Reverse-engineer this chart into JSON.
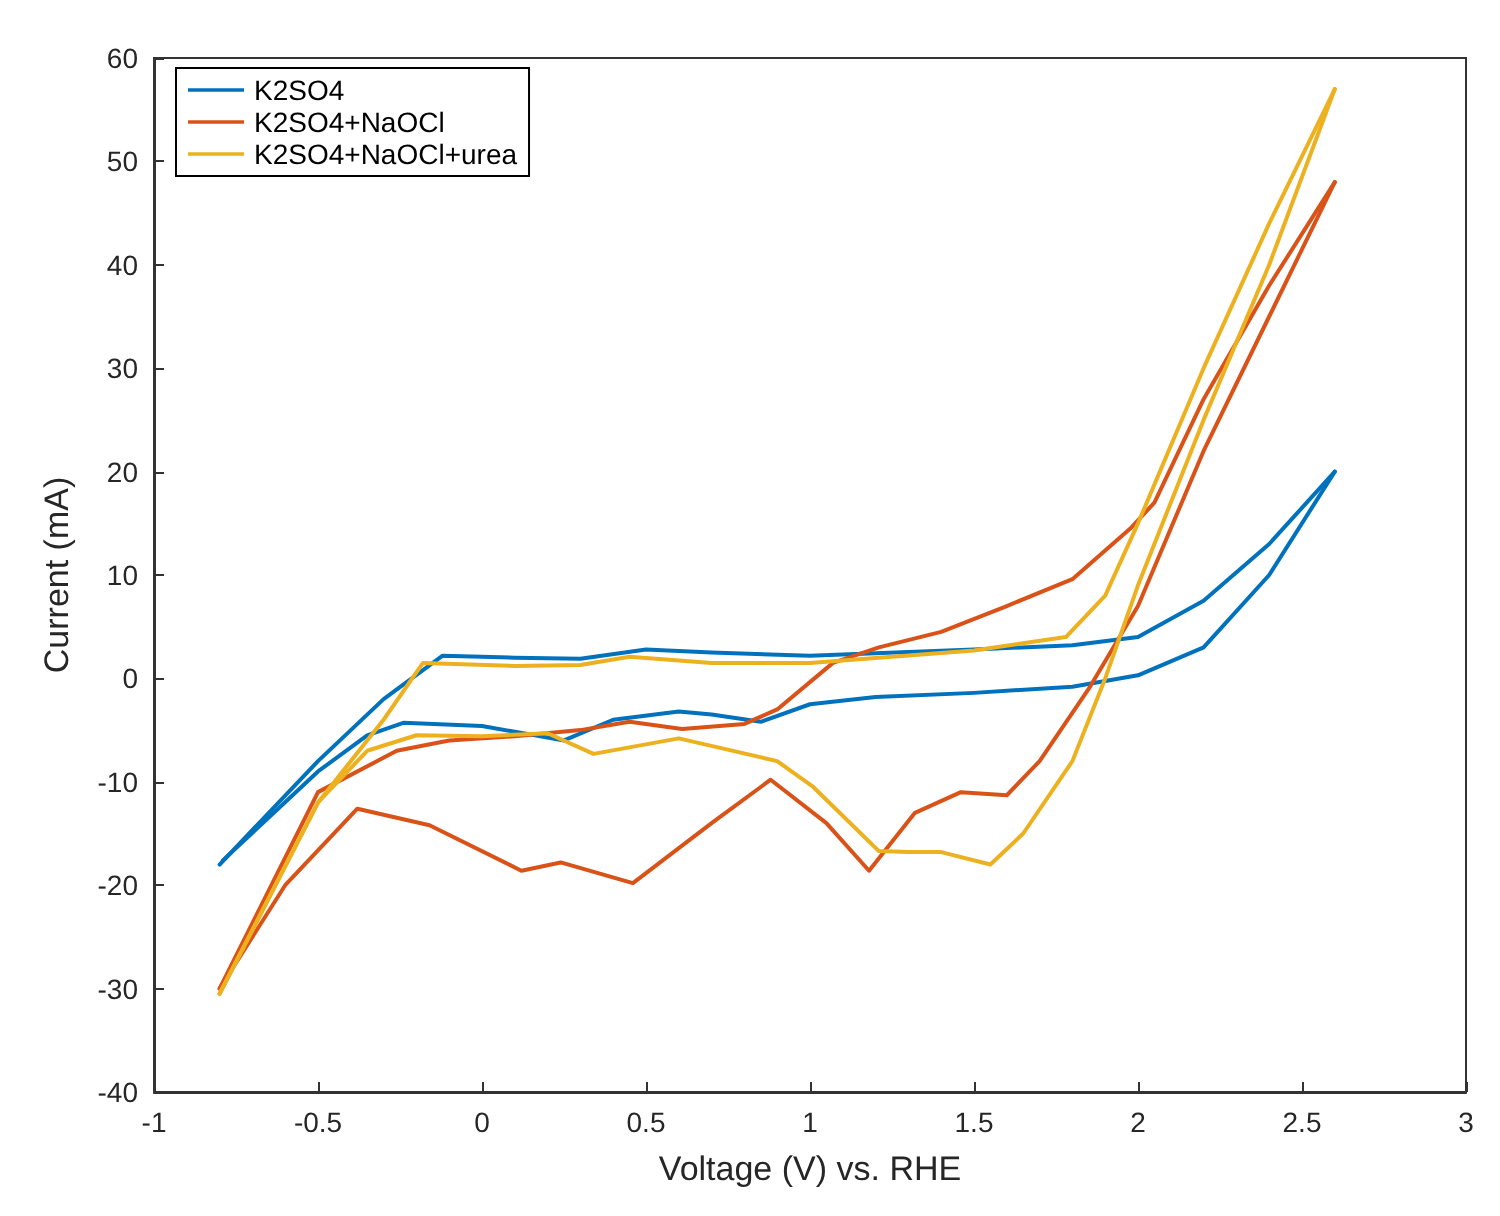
{
  "chart_data": {
    "type": "line",
    "xlabel": "Voltage (V) vs. RHE",
    "ylabel": "Current (mA)",
    "xlim": [
      -1,
      3
    ],
    "xticks": [
      -1,
      -0.5,
      0,
      0.5,
      1,
      1.5,
      2,
      2.5,
      3
    ],
    "ylim": [
      -40,
      60
    ],
    "yticks": [
      -40,
      -30,
      -20,
      -10,
      0,
      10,
      20,
      30,
      40,
      50,
      60
    ],
    "grid": false,
    "legend": "top left",
    "marker": "none",
    "line_style": "solid",
    "series": [
      {
        "name": "K2SO4",
        "color": "#0072bd",
        "x": [
          -0.8,
          -0.5,
          -0.3,
          -0.12,
          0.1,
          0.3,
          0.5,
          0.7,
          1.0,
          1.5,
          1.8,
          2.0,
          2.2,
          2.4,
          2.6
        ],
        "values": [
          -18,
          -8,
          -2,
          2.2,
          2,
          1.9,
          2.8,
          2.5,
          2.2,
          2.8,
          3.2,
          4,
          7.5,
          13,
          20
        ]
      },
      {
        "color": "#0072bd",
        "x": [
          -0.79,
          -0.5,
          -0.35,
          -0.24,
          0,
          0.25,
          0.4,
          0.6,
          0.7,
          0.85,
          1.0,
          1.2,
          1.5,
          1.8,
          2.0,
          2.2,
          2.4,
          2.6
        ],
        "values": [
          -17.6,
          -9,
          -5.5,
          -4.3,
          -4.6,
          -6,
          -4,
          -3.2,
          -3.5,
          -4.2,
          -2.5,
          -1.8,
          -1.4,
          -0.8,
          0.3,
          3,
          10,
          20
        ]
      },
      {
        "name": "K2SO4+NaOCl",
        "color": "#d95319",
        "x": [
          -0.8,
          -0.6,
          -0.38,
          -0.16,
          0.12,
          0.24,
          0.46,
          0.7,
          0.88,
          1.05,
          1.18,
          1.32,
          1.46,
          1.6,
          1.7,
          1.85,
          2.0,
          2.2,
          2.4,
          2.6
        ],
        "values": [
          -30,
          -20,
          -12.6,
          -14.2,
          -18.6,
          -17.8,
          -19.8,
          -14,
          -9.8,
          -14,
          -18.6,
          -13,
          -11,
          -11.3,
          -8,
          -1,
          7,
          22,
          35,
          48
        ]
      },
      {
        "color": "#d95319",
        "x": [
          -0.8,
          -0.5,
          -0.26,
          -0.1,
          0.1,
          0.3,
          0.45,
          0.61,
          0.8,
          0.9,
          1.07,
          1.21,
          1.4,
          1.6,
          1.8,
          1.98,
          2.05,
          2.2,
          2.4,
          2.6
        ],
        "values": [
          -30,
          -11,
          -7,
          -6,
          -5.6,
          -5,
          -4.2,
          -4.9,
          -4.4,
          -3,
          1.5,
          3,
          4.5,
          7,
          9.6,
          14.6,
          17,
          27,
          38,
          48
        ]
      },
      {
        "name": "K2SO4+NaOCl+urea",
        "color": "#edb120",
        "x": [
          -0.8,
          -0.5,
          -0.3,
          -0.18,
          0.1,
          0.3,
          0.45,
          0.7,
          1.0,
          1.5,
          1.78,
          1.9,
          2.0,
          2.2,
          2.4,
          2.6
        ],
        "values": [
          -30.5,
          -12,
          -4,
          1.5,
          1.2,
          1.3,
          2.1,
          1.5,
          1.5,
          2.7,
          4,
          8,
          15,
          30,
          44,
          57
        ]
      },
      {
        "color": "#edb120",
        "x": [
          -0.8,
          -0.5,
          -0.35,
          -0.2,
          0,
          0.2,
          0.34,
          0.6,
          0.9,
          1.01,
          1.21,
          1.3,
          1.4,
          1.55,
          1.65,
          1.8,
          1.9,
          2.0,
          2.2,
          2.4,
          2.6
        ],
        "values": [
          -30.5,
          -12,
          -7,
          -5.5,
          -5.6,
          -5.3,
          -7.3,
          -5.8,
          -8,
          -10.5,
          -16.7,
          -16.8,
          -16.8,
          -18,
          -15,
          -8,
          0,
          9,
          25,
          40,
          57
        ]
      }
    ]
  }
}
